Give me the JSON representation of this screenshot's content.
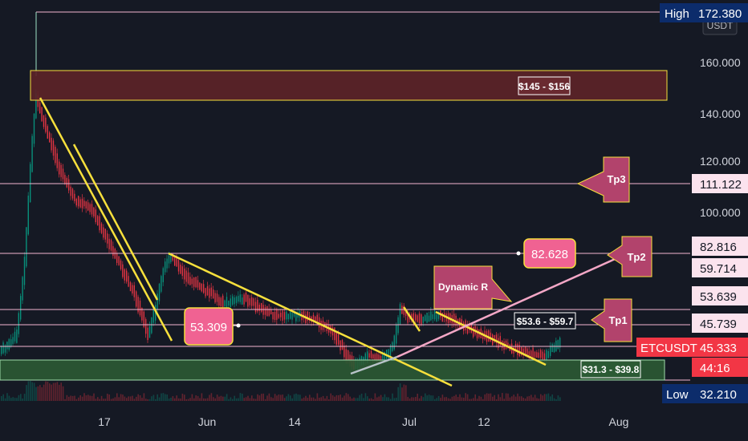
{
  "chart_data": {
    "type": "candlestick",
    "symbol_label": "ETCUSDT",
    "currency_label": "USDT",
    "y_ticks": [
      "160.000",
      "140.000",
      "120.000",
      "100.000"
    ],
    "x_ticks": [
      "17",
      "Jun",
      "14",
      "Jul",
      "12",
      "Aug"
    ],
    "price_tags": [
      {
        "name": "high",
        "label": "High",
        "value": "172.380",
        "color": "#0c2c6b"
      },
      {
        "name": "tp3",
        "label": "",
        "value": "111.122",
        "color": "#fbe3ee"
      },
      {
        "name": "level-82",
        "label": "",
        "value": "82.816",
        "color": "#fbe3ee"
      },
      {
        "name": "level-59",
        "label": "",
        "value": "59.714",
        "color": "#fbe3ee"
      },
      {
        "name": "level-53",
        "label": "",
        "value": "53.639",
        "color": "#fbe3ee"
      },
      {
        "name": "level-45",
        "label": "",
        "value": "45.739",
        "color": "#fbe3ee"
      },
      {
        "name": "etcusdt",
        "label": "ETCUSDT",
        "value": "45.333",
        "color": "#f23645"
      },
      {
        "name": "countdown",
        "label": "",
        "value": "44:16",
        "color": "#f23645"
      },
      {
        "name": "low",
        "label": "Low",
        "value": "32.210",
        "color": "#0c2c6b"
      }
    ],
    "zones": [
      {
        "name": "resistance-zone",
        "label": "$145 - $156",
        "low": 145,
        "high": 156,
        "color": "#5c2328"
      },
      {
        "name": "support-zone",
        "label": "$31.3 - $39.8",
        "low": 31.3,
        "high": 39.8,
        "color": "#2b5a34"
      }
    ],
    "range_labels": [
      {
        "name": "range-label-53-59",
        "text": "$53.6 - $59.7"
      }
    ],
    "bubbles": [
      {
        "name": "price-bubble-82",
        "text": "82.628"
      },
      {
        "name": "price-bubble-53",
        "text": "53.309"
      }
    ],
    "callouts": [
      {
        "name": "callout-tp3",
        "text": "Tp3"
      },
      {
        "name": "callout-tp2",
        "text": "Tp2"
      },
      {
        "name": "callout-tp1",
        "text": "Tp1"
      },
      {
        "name": "callout-dynamic-r",
        "text": "Dynamic R"
      }
    ],
    "colors": {
      "background": "#151924",
      "up": "#089981",
      "down": "#f23645",
      "trendline": "#f7e03c",
      "rising_line": "#f3a7c6",
      "callout": "#b2436c",
      "bubble": "#f06292"
    }
  }
}
